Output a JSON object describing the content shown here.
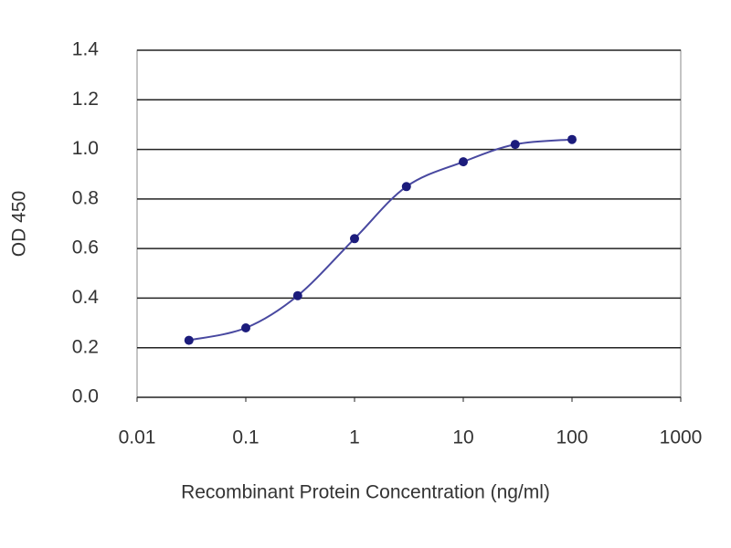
{
  "chart_data": {
    "type": "scatter-line",
    "x_label": "Recombinant Protein Concentration (ng/ml)",
    "y_label": "OD 450",
    "x_scale": "log",
    "grid": true,
    "color": "#1c1c7c",
    "line_color": "#4848a0",
    "x": [
      0.03,
      0.1,
      0.3,
      1,
      3,
      10,
      30,
      100
    ],
    "values": [
      0.23,
      0.28,
      0.41,
      0.64,
      0.85,
      0.95,
      1.02,
      1.04
    ],
    "xlim": [
      0.01,
      1000
    ],
    "xticks": [
      0.01,
      0.1,
      1,
      10,
      100,
      1000
    ],
    "ylim": [
      0,
      1.4
    ],
    "yticks": [
      {
        "value": 0,
        "label": "0.0"
      },
      0.2,
      0.4,
      0.6,
      0.8,
      {
        "value": 1,
        "label": "1.0"
      },
      1.2,
      1.4
    ]
  }
}
